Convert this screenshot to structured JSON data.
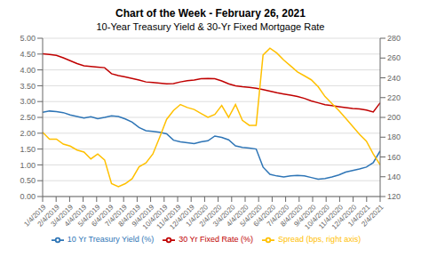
{
  "chart_data": {
    "type": "line",
    "title": "Chart of the Week - February 26, 2021",
    "subtitle": "10-Year Treasury Yield & 30-Yr Fixed Mortgage Rate",
    "x": [
      0,
      0.510204,
      1.020408,
      1.530612,
      2.040816,
      2.55102,
      3.061224,
      3.571429,
      4.081633,
      4.591837,
      5.102041,
      5.612245,
      6.122449,
      6.632653,
      7.142857,
      7.653061,
      8.163265,
      8.673469,
      9.183673,
      9.693878,
      10.204082,
      10.714286,
      11.22449,
      11.734694,
      12.244898,
      12.755102,
      13.265306,
      13.77551,
      14.285714,
      14.795918,
      15.306122,
      15.816327,
      16.326531,
      16.836735,
      17.346939,
      17.857143,
      18.367347,
      18.877551,
      19.387755,
      19.897959,
      20.408163,
      20.918367,
      21.428571,
      21.938776,
      22.44898,
      22.959184,
      23.469388,
      23.979592,
      24.489796,
      25
    ],
    "xlim": [
      0,
      25
    ],
    "xticks": [
      {
        "value": 0,
        "label": "1/4/2019"
      },
      {
        "value": 1,
        "label": "2/4/2019"
      },
      {
        "value": 2,
        "label": "3/4/2019"
      },
      {
        "value": 3,
        "label": "4/4/2019"
      },
      {
        "value": 4,
        "label": "5/4/2019"
      },
      {
        "value": 5,
        "label": "6/4/2019"
      },
      {
        "value": 6,
        "label": "7/4/2019"
      },
      {
        "value": 7,
        "label": "8/4/2019"
      },
      {
        "value": 8,
        "label": "9/4/2019"
      },
      {
        "value": 9,
        "label": "10/4/2019"
      },
      {
        "value": 10,
        "label": "11/4/2019"
      },
      {
        "value": 11,
        "label": "12/4/2019"
      },
      {
        "value": 12,
        "label": "1/4/2020"
      },
      {
        "value": 13,
        "label": "2/4/2020"
      },
      {
        "value": 14,
        "label": "3/4/2020"
      },
      {
        "value": 15,
        "label": "4/4/2020"
      },
      {
        "value": 16,
        "label": "5/4/2020"
      },
      {
        "value": 17,
        "label": "6/4/2020"
      },
      {
        "value": 18,
        "label": "7/4/2020"
      },
      {
        "value": 19,
        "label": "8/4/2020"
      },
      {
        "value": 20,
        "label": "9/4/2020"
      },
      {
        "value": 21,
        "label": "10/4/2020"
      },
      {
        "value": 22,
        "label": "11/4/2020"
      },
      {
        "value": 23,
        "label": "12/4/2020"
      },
      {
        "value": 24,
        "label": "1/4/2021"
      },
      {
        "value": 25,
        "label": "2/4/2021"
      }
    ],
    "ylim": [
      0.0,
      5.0
    ],
    "yticks": [
      {
        "value": 0.0,
        "label": "0.00"
      },
      {
        "value": 0.5,
        "label": "0.50"
      },
      {
        "value": 1.0,
        "label": "1.00"
      },
      {
        "value": 1.5,
        "label": "1.50"
      },
      {
        "value": 2.0,
        "label": "2.00"
      },
      {
        "value": 2.5,
        "label": "2.50"
      },
      {
        "value": 3.0,
        "label": "3.00"
      },
      {
        "value": 3.5,
        "label": "3.50"
      },
      {
        "value": 4.0,
        "label": "4.00"
      },
      {
        "value": 4.5,
        "label": "4.50"
      },
      {
        "value": 5.0,
        "label": "5.00"
      }
    ],
    "y2lim": [
      120,
      280
    ],
    "y2ticks": [
      120,
      140,
      160,
      180,
      200,
      220,
      240,
      260,
      280
    ],
    "grid": true,
    "legend": "bottom",
    "series": [
      {
        "name": "10 Yr Treasury Yield (%)",
        "color": "#2e75b6",
        "values": [
          2.66,
          2.7,
          2.68,
          2.65,
          2.58,
          2.53,
          2.48,
          2.52,
          2.46,
          2.5,
          2.55,
          2.53,
          2.45,
          2.35,
          2.18,
          2.08,
          2.06,
          2.03,
          1.98,
          1.78,
          1.73,
          1.7,
          1.67,
          1.73,
          1.76,
          1.91,
          1.87,
          1.79,
          1.6,
          1.55,
          1.53,
          1.5,
          0.93,
          0.7,
          0.65,
          0.62,
          0.65,
          0.67,
          0.65,
          0.6,
          0.55,
          0.57,
          0.62,
          0.68,
          0.77,
          0.82,
          0.87,
          0.93,
          1.07,
          1.44
        ]
      },
      {
        "name": "30 Yr Fixed Rate (%)",
        "color": "#c00000",
        "values": [
          4.51,
          4.49,
          4.46,
          4.38,
          4.29,
          4.2,
          4.13,
          4.11,
          4.09,
          4.07,
          3.88,
          3.82,
          3.78,
          3.73,
          3.68,
          3.62,
          3.6,
          3.58,
          3.56,
          3.57,
          3.62,
          3.66,
          3.68,
          3.72,
          3.73,
          3.72,
          3.65,
          3.56,
          3.5,
          3.47,
          3.45,
          3.42,
          3.38,
          3.33,
          3.28,
          3.24,
          3.2,
          3.16,
          3.1,
          3.02,
          2.96,
          2.9,
          2.87,
          2.84,
          2.81,
          2.78,
          2.77,
          2.73,
          2.67,
          2.96
        ]
      },
      {
        "name": "Spread (bps, right axis)",
        "color": "#ffc000",
        "axis": "y2",
        "values": [
          185,
          178,
          178,
          173,
          171,
          167,
          165,
          158,
          163,
          157,
          133,
          130,
          133,
          138,
          150,
          154,
          163,
          180,
          198,
          207,
          213,
          210,
          208,
          204,
          200,
          203,
          212,
          200,
          213,
          197,
          192,
          192,
          263,
          270,
          265,
          258,
          252,
          246,
          242,
          238,
          231,
          221,
          214,
          207,
          199,
          191,
          183,
          176,
          163,
          152
        ]
      }
    ]
  }
}
